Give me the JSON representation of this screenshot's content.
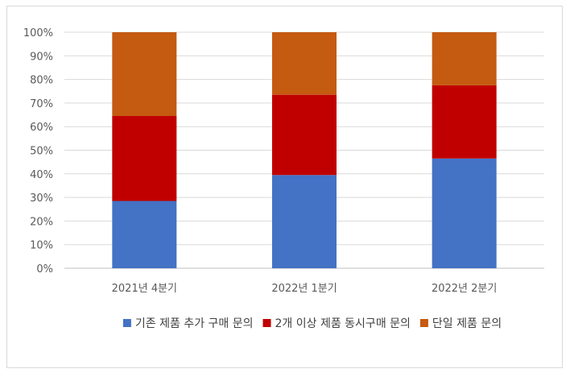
{
  "chart_data": {
    "type": "bar",
    "stacked": true,
    "normalized": true,
    "title": "",
    "xlabel": "",
    "ylabel": "",
    "categories": [
      "2021년 4분기",
      "2022년 1분기",
      "2022년 2분기"
    ],
    "ylim": [
      0,
      100
    ],
    "yticks": [
      "0%",
      "10%",
      "20%",
      "30%",
      "40%",
      "50%",
      "60%",
      "70%",
      "80%",
      "90%",
      "100%"
    ],
    "grid": true,
    "legend_position": "bottom",
    "series": [
      {
        "name": "기존 제품 추가 구매 문의",
        "color": "#4472C4",
        "values": [
          28.5,
          39.5,
          46.5
        ]
      },
      {
        "name": "2개 이상 제품 동시구매 문의",
        "color": "#C00000",
        "values": [
          36.0,
          34.0,
          31.0
        ]
      },
      {
        "name": "단일 제품 문의",
        "color": "#C55A11",
        "values": [
          35.5,
          26.5,
          22.5
        ]
      }
    ]
  }
}
